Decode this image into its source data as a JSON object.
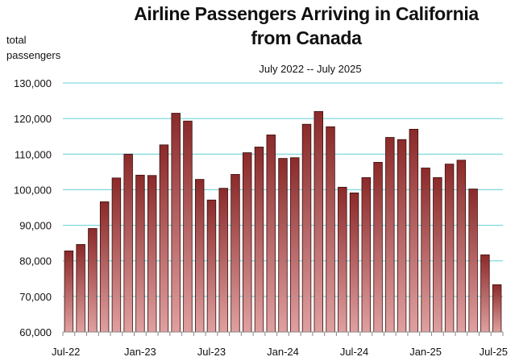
{
  "chart_data": {
    "type": "bar",
    "title_lines": [
      "Airline Passengers Arriving in California",
      "from Canada"
    ],
    "subtitle": "July 2022 -- July 2025",
    "ylabel_lines": [
      "total",
      "passengers"
    ],
    "ylim": [
      60000,
      130000
    ],
    "yticks": [
      60000,
      70000,
      80000,
      90000,
      100000,
      110000,
      120000,
      130000
    ],
    "ytick_labels": [
      "60,000",
      "70,000",
      "80,000",
      "90,000",
      "100,000",
      "110,000",
      "120,000",
      "130,000"
    ],
    "xtick_labels": [
      "Jul-22",
      "Jan-23",
      "Jul-23",
      "Jan-24",
      "Jul-24",
      "Jan-25",
      "Jul-25"
    ],
    "xtick_indices": [
      0,
      6,
      12,
      18,
      24,
      30,
      36
    ],
    "grid": true,
    "colors": {
      "bar_top": "#8b2a2a",
      "bar_bottom": "#e0a0a0",
      "grid": "#5fd0d8",
      "axis": "#888888"
    },
    "categories": [
      "Jul-22",
      "Aug-22",
      "Sep-22",
      "Oct-22",
      "Nov-22",
      "Dec-22",
      "Jan-23",
      "Feb-23",
      "Mar-23",
      "Apr-23",
      "May-23",
      "Jun-23",
      "Jul-23",
      "Aug-23",
      "Sep-23",
      "Oct-23",
      "Nov-23",
      "Dec-23",
      "Jan-24",
      "Feb-24",
      "Mar-24",
      "Apr-24",
      "May-24",
      "Jun-24",
      "Jul-24",
      "Aug-24",
      "Sep-24",
      "Oct-24",
      "Nov-24",
      "Dec-24",
      "Jan-25",
      "Feb-25",
      "Mar-25",
      "Apr-25",
      "May-25",
      "Jun-25",
      "Jul-25"
    ],
    "values": [
      82800,
      84600,
      89100,
      96600,
      103300,
      110000,
      104100,
      104000,
      112600,
      121500,
      119300,
      102900,
      97100,
      100400,
      104300,
      110400,
      112000,
      115400,
      108800,
      109000,
      118400,
      122000,
      117700,
      100700,
      99100,
      103400,
      107700,
      114700,
      114100,
      117000,
      106100,
      103400,
      107200,
      108300,
      100200,
      81700,
      73300
    ]
  }
}
